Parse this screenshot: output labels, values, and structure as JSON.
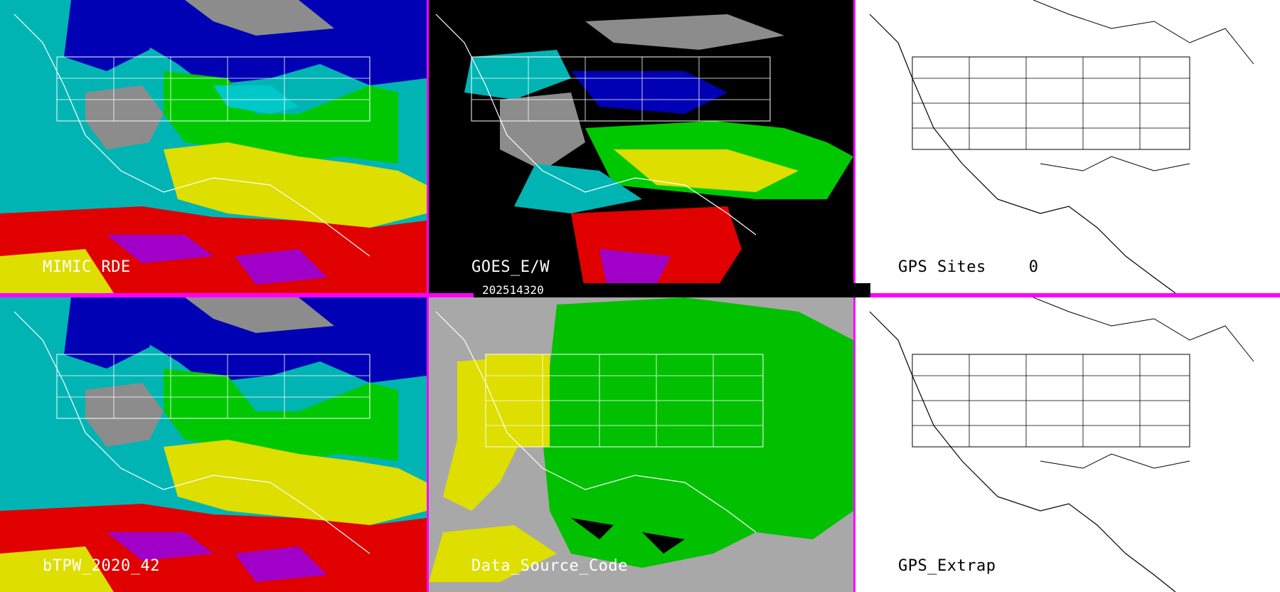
{
  "panels": {
    "top_left": {
      "label": "MIMIC RDE",
      "product": "tpw-merged"
    },
    "top_mid": {
      "label": "GOES_E/W",
      "product": "goes-tpw"
    },
    "top_right": {
      "label": "GPS Sites",
      "count": "0",
      "product": "gps-sites"
    },
    "bottom_left": {
      "label": "bTPW_2020_42",
      "product": "blended-tpw"
    },
    "bottom_mid": {
      "label": "Data_Source_Code",
      "product": "source-code"
    },
    "bottom_right": {
      "label": "GPS_Extrap",
      "product": "gps-extrap"
    }
  },
  "timestamp": "202514320",
  "colors": {
    "divider": "#ff00ff",
    "tpw_scale": [
      "#9a9a9a",
      "#00c8c8",
      "#0000b4",
      "#00c800",
      "#dede00",
      "#e00000",
      "#a000c8"
    ],
    "source_scale": [
      "#a8a8a8",
      "#dede00",
      "#00c000"
    ]
  }
}
